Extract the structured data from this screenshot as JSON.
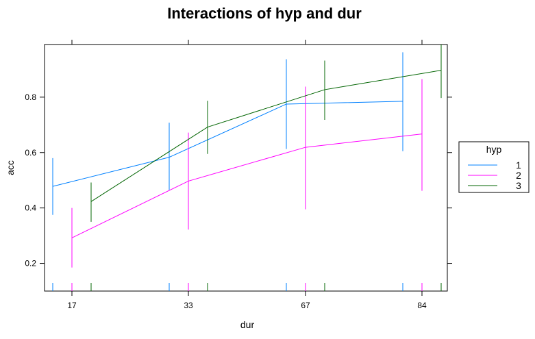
{
  "chart_data": {
    "type": "line",
    "title": "Interactions of hyp and dur",
    "xlabel": "dur",
    "ylabel": "acc",
    "categories": [
      "17",
      "33",
      "67",
      "84"
    ],
    "ylim": [
      0.1,
      0.99
    ],
    "yticks": [
      0.2,
      0.4,
      0.6,
      0.8
    ],
    "grid": false,
    "legend_title": "hyp",
    "legend_position": "right",
    "series": [
      {
        "name": "1",
        "color": "#0080ff",
        "values": [
          0.478,
          0.583,
          0.775,
          0.785
        ],
        "lower": [
          0.375,
          0.465,
          0.613,
          0.605
        ],
        "upper": [
          0.58,
          0.708,
          0.937,
          0.962
        ]
      },
      {
        "name": "2",
        "color": "#ff00ff",
        "values": [
          0.292,
          0.497,
          0.619,
          0.667
        ],
        "lower": [
          0.185,
          0.322,
          0.395,
          0.462
        ],
        "upper": [
          0.4,
          0.672,
          0.838,
          0.865
        ]
      },
      {
        "name": "3",
        "color": "#006400",
        "values": [
          0.423,
          0.692,
          0.827,
          0.897
        ],
        "lower": [
          0.35,
          0.595,
          0.718,
          0.797
        ],
        "upper": [
          0.492,
          0.787,
          0.932,
          0.99
        ]
      }
    ]
  }
}
